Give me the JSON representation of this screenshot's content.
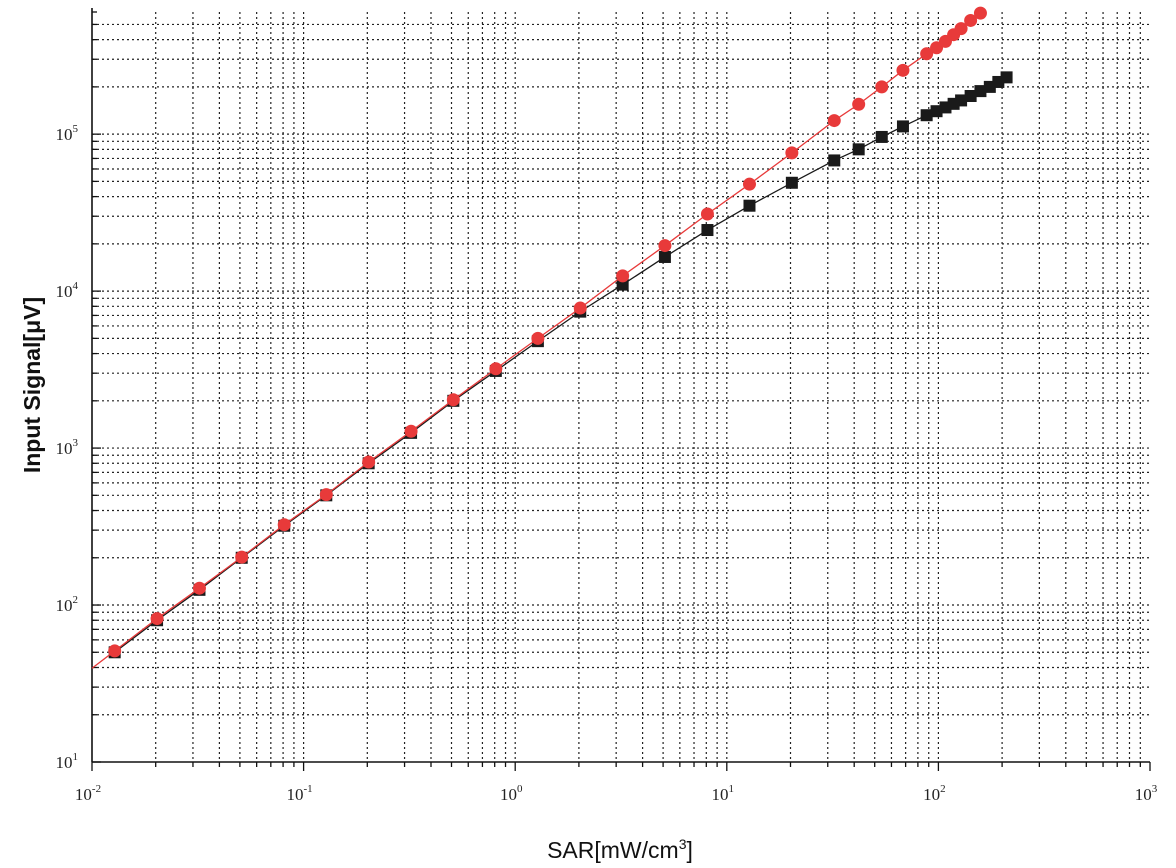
{
  "chart_data": {
    "type": "scatter",
    "xlabel": {
      "text": "SAR[mW/cm",
      "sup": "3",
      "close": "]"
    },
    "ylabel": "Input Signal[μV]",
    "xscale": "log",
    "yscale": "log",
    "xlim": [
      0.01,
      1000
    ],
    "ylim": [
      10,
      600000
    ],
    "x_ticks": [
      {
        "base": "10",
        "exp": "-2",
        "value": 0.01
      },
      {
        "base": "10",
        "exp": "-1",
        "value": 0.1
      },
      {
        "base": "10",
        "exp": "0",
        "value": 1
      },
      {
        "base": "10",
        "exp": "1",
        "value": 10
      },
      {
        "base": "10",
        "exp": "2",
        "value": 100
      },
      {
        "base": "10",
        "exp": "3",
        "value": 1000
      }
    ],
    "y_ticks": [
      {
        "base": "10",
        "exp": "1",
        "value": 10
      },
      {
        "base": "10",
        "exp": "2",
        "value": 100
      },
      {
        "base": "10",
        "exp": "3",
        "value": 1000
      },
      {
        "base": "10",
        "exp": "4",
        "value": 10000
      },
      {
        "base": "10",
        "exp": "5",
        "value": 100000
      }
    ],
    "grid": true,
    "grid_style": "dotted",
    "series": [
      {
        "marker": "square",
        "color": "#1a1a1a",
        "x": [
          0.0128,
          0.0203,
          0.0322,
          0.051,
          0.081,
          0.128,
          0.203,
          0.322,
          0.51,
          0.81,
          1.28,
          2.03,
          3.22,
          5.1,
          8.1,
          12.8,
          20.3,
          32.2,
          42,
          54,
          68,
          88,
          98,
          108,
          118,
          128,
          142,
          158,
          175,
          192,
          210
        ],
        "y": [
          50,
          80,
          125,
          200,
          320,
          500,
          800,
          1250,
          2000,
          3100,
          4800,
          7400,
          11000,
          16500,
          24500,
          35000,
          49000,
          68000,
          80000,
          96000,
          112000,
          132000,
          140000,
          148000,
          156000,
          164000,
          175000,
          188000,
          200000,
          215000,
          230000
        ]
      },
      {
        "marker": "circle",
        "color": "#e83a3a",
        "x": [
          0.0128,
          0.0203,
          0.0322,
          0.051,
          0.081,
          0.128,
          0.203,
          0.322,
          0.51,
          0.81,
          1.28,
          2.03,
          3.22,
          5.1,
          8.1,
          12.8,
          20.3,
          32.2,
          42,
          54,
          68,
          88,
          98,
          108,
          118,
          128,
          142,
          158
        ],
        "y": [
          51,
          82,
          128,
          202,
          325,
          505,
          815,
          1280,
          2030,
          3200,
          5000,
          7800,
          12500,
          19500,
          31000,
          48000,
          76000,
          122000,
          155000,
          200000,
          255000,
          325000,
          355000,
          390000,
          430000,
          470000,
          530000,
          590000
        ]
      }
    ]
  }
}
